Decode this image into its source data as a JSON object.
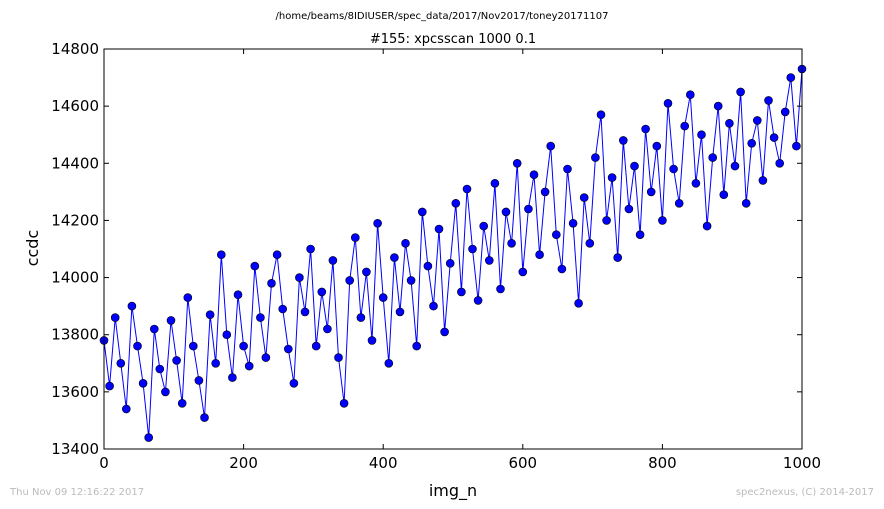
{
  "header": {
    "path": "/home/beams/8IDIUSER/spec_data/2017/Nov2017/toney20171107"
  },
  "footer": {
    "timestamp": "Thu Nov 09 12:16:22 2017",
    "credit": "spec2nexus, (C) 2014-2017"
  },
  "colors": {
    "line": "#0000ff",
    "marker_fill": "#0000ff",
    "marker_edge": "#000000",
    "axes": "#000000"
  },
  "chart_data": {
    "type": "line",
    "title": "#155: xpcsscan 1000 0.1",
    "xlabel": "img_n",
    "ylabel": "ccdc",
    "xlim": [
      0,
      1000
    ],
    "ylim": [
      13400,
      14800
    ],
    "xticks": [
      0,
      200,
      400,
      600,
      800,
      1000
    ],
    "yticks": [
      13400,
      13600,
      13800,
      14000,
      14200,
      14400,
      14600,
      14800
    ],
    "grid": false,
    "legend": "none",
    "series": [
      {
        "marker": "circle",
        "x": [
          0,
          8,
          16,
          24,
          32,
          40,
          48,
          56,
          64,
          72,
          80,
          88,
          96,
          104,
          112,
          120,
          128,
          136,
          144,
          152,
          160,
          168,
          176,
          184,
          192,
          200,
          208,
          216,
          224,
          232,
          240,
          248,
          256,
          264,
          272,
          280,
          288,
          296,
          304,
          312,
          320,
          328,
          336,
          344,
          352,
          360,
          368,
          376,
          384,
          392,
          400,
          408,
          416,
          424,
          432,
          440,
          448,
          456,
          464,
          472,
          480,
          488,
          496,
          504,
          512,
          520,
          528,
          536,
          544,
          552,
          560,
          568,
          576,
          584,
          592,
          600,
          608,
          616,
          624,
          632,
          640,
          648,
          656,
          664,
          672,
          680,
          688,
          696,
          704,
          712,
          720,
          728,
          736,
          744,
          752,
          760,
          768,
          776,
          784,
          792,
          800,
          808,
          816,
          824,
          832,
          840,
          848,
          856,
          864,
          872,
          880,
          888,
          896,
          904,
          912,
          920,
          928,
          936,
          944,
          952,
          960,
          968,
          976,
          984,
          992,
          1000
        ],
        "y": [
          13780,
          13620,
          13860,
          13700,
          13540,
          13900,
          13760,
          13630,
          13440,
          13820,
          13680,
          13600,
          13850,
          13710,
          13560,
          13930,
          13760,
          13640,
          13510,
          13870,
          13700,
          14080,
          13800,
          13650,
          13940,
          13760,
          13690,
          14040,
          13860,
          13720,
          13980,
          14080,
          13890,
          13750,
          13630,
          14000,
          13880,
          14100,
          13760,
          13950,
          13820,
          14060,
          13720,
          13560,
          13990,
          14140,
          13860,
          14020,
          13780,
          14190,
          13930,
          13700,
          14070,
          13880,
          14120,
          13990,
          13760,
          14230,
          14040,
          13900,
          14170,
          13810,
          14050,
          14260,
          13950,
          14310,
          14100,
          13920,
          14180,
          14060,
          14330,
          13960,
          14230,
          14120,
          14400,
          14020,
          14240,
          14360,
          14080,
          14300,
          14460,
          14150,
          14030,
          14380,
          14190,
          13910,
          14280,
          14120,
          14420,
          14570,
          14200,
          14350,
          14070,
          14480,
          14240,
          14390,
          14150,
          14520,
          14300,
          14460,
          14200,
          14610,
          14380,
          14260,
          14530,
          14640,
          14330,
          14500,
          14180,
          14420,
          14600,
          14290,
          14540,
          14390,
          14650,
          14260,
          14470,
          14550,
          14340,
          14620,
          14490,
          14400,
          14580,
          14700,
          14460,
          14730
        ]
      }
    ]
  }
}
